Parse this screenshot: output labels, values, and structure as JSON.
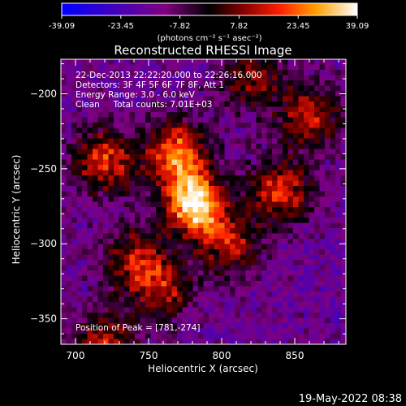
{
  "chart_data": {
    "type": "heatmap",
    "title": "Reconstructed RHESSI Image",
    "xlabel": "Heliocentric X (arcsec)",
    "ylabel": "Heliocentric Y (arcsec)",
    "xlim": [
      690,
      885
    ],
    "ylim": [
      -367,
      -177
    ],
    "x_ticks": [
      700,
      750,
      800,
      850
    ],
    "y_ticks": [
      -200,
      -250,
      -300,
      -350
    ],
    "colorbar": {
      "ticks": [
        "-39.09",
        "-23.45",
        "-7.82",
        "7.82",
        "23.45",
        "39.09"
      ],
      "range": [
        -39.09,
        39.09
      ],
      "unit_label": "(photons cm⁻² s⁻¹ asec⁻²)"
    },
    "info_lines": [
      "22-Dec-2013 22:22:20.000 to 22:26:16.000",
      "Detectors: 3F 4F 5F 6F 7F 8F, Att 1",
      "Energy Range: 3.0 - 6.0 keV",
      "Clean     Total counts: 7.01E+03"
    ],
    "peak_label": "Position of Peak = [781,-274]",
    "peak": [
      781,
      -274
    ],
    "peak_value": 39.09,
    "sources": [
      {
        "x": 781,
        "y": -274,
        "value": 39
      },
      {
        "x": 770,
        "y": -240,
        "value": 26
      },
      {
        "x": 720,
        "y": -245,
        "value": 18
      },
      {
        "x": 840,
        "y": -265,
        "value": 17
      },
      {
        "x": 860,
        "y": -215,
        "value": 14
      },
      {
        "x": 740,
        "y": -310,
        "value": 12
      },
      {
        "x": 760,
        "y": -330,
        "value": 10
      },
      {
        "x": 805,
        "y": -300,
        "value": 12
      },
      {
        "x": 720,
        "y": -365,
        "value": 12
      },
      {
        "x": 820,
        "y": -190,
        "value": 9
      }
    ]
  },
  "footer": {
    "timestamp": "19-May-2022 08:38"
  }
}
